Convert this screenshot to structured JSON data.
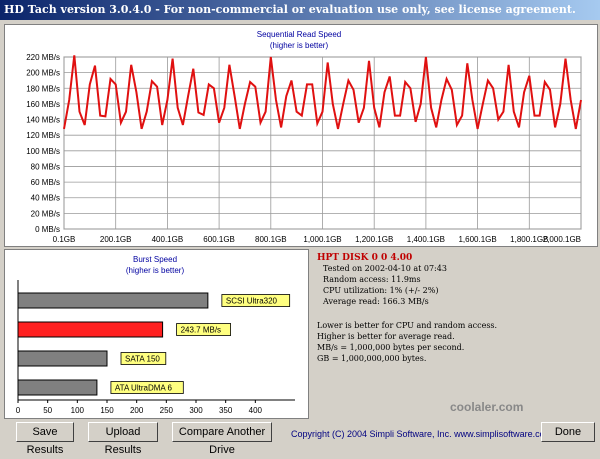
{
  "window": {
    "title": "HD Tach version 3.0.4.0 - For non-commercial or evaluation use only, see license agreement."
  },
  "read_chart": {
    "title": "Sequential Read Speed",
    "subtitle": "(higher is better)",
    "line_color": "#e01010"
  },
  "burst_chart": {
    "title": "Burst Speed",
    "subtitle": "(higher is better)"
  },
  "chart_data": [
    {
      "type": "line",
      "title": "Sequential Read Speed",
      "subtitle": "(higher is better)",
      "xlabel": "",
      "ylabel": "",
      "ylim": [
        0,
        220
      ],
      "xlim": [
        0.1,
        2000
      ],
      "yticks": [
        "0 MB/s",
        "20 MB/s",
        "40 MB/s",
        "60 MB/s",
        "80 MB/s",
        "100 MB/s",
        "120 MB/s",
        "140 MB/s",
        "160 MB/s",
        "180 MB/s",
        "200 MB/s",
        "220 MB/s"
      ],
      "xticks": [
        "0.1GB",
        "200.1GB",
        "400.1GB",
        "600.1GB",
        "800.1GB",
        "1,000.1GB",
        "1,200.1GB",
        "1,400.1GB",
        "1,600.1GB",
        "1,800.1GB",
        "2,000.1GB"
      ],
      "grid": true,
      "series": [
        {
          "x": [
            0,
            20,
            40,
            60,
            80,
            100,
            120,
            140,
            160,
            180,
            200,
            220,
            240,
            260,
            280,
            300,
            320,
            340,
            360,
            380,
            400,
            420,
            440,
            460,
            480,
            500,
            520,
            540,
            560,
            580,
            600,
            620,
            640,
            660,
            680,
            700,
            720,
            740,
            760,
            780,
            800,
            820,
            840,
            860,
            880,
            900,
            920,
            940,
            960,
            980,
            1000,
            1020,
            1040,
            1060,
            1080,
            1100,
            1120,
            1140,
            1160,
            1180,
            1200,
            1220,
            1240,
            1260,
            1280,
            1300,
            1320,
            1340,
            1360,
            1380,
            1400,
            1420,
            1440,
            1460,
            1480,
            1500,
            1520,
            1540,
            1560,
            1580,
            1600,
            1620,
            1640,
            1660,
            1680,
            1700,
            1720,
            1740,
            1760,
            1780,
            1800,
            1820,
            1840,
            1860,
            1880,
            1900,
            1920,
            1940,
            1960,
            1980,
            2000
          ],
          "values": [
            128,
            165,
            222,
            150,
            133,
            185,
            209,
            145,
            144,
            192,
            185,
            136,
            150,
            210,
            175,
            128,
            150,
            189,
            182,
            133,
            165,
            218,
            155,
            133,
            170,
            205,
            149,
            146,
            185,
            180,
            136,
            155,
            210,
            170,
            128,
            160,
            188,
            182,
            136,
            150,
            220,
            165,
            130,
            170,
            190,
            150,
            145,
            185,
            185,
            135,
            150,
            213,
            160,
            128,
            160,
            190,
            178,
            136,
            155,
            215,
            155,
            130,
            175,
            195,
            145,
            145,
            188,
            180,
            137,
            160,
            220,
            155,
            130,
            165,
            192,
            178,
            133,
            145,
            212,
            165,
            128,
            160,
            190,
            180,
            140,
            150,
            210,
            150,
            130,
            175,
            196,
            145,
            145,
            188,
            178,
            130,
            160,
            218,
            165,
            128,
            165
          ]
        }
      ]
    },
    {
      "type": "bar",
      "title": "Burst Speed",
      "subtitle": "(higher is better)",
      "xlabel": "",
      "ylabel": "",
      "xlim": [
        0,
        450
      ],
      "xticks": [
        "0",
        "50",
        "100",
        "150",
        "200",
        "250",
        "300",
        "350",
        "400"
      ],
      "grid": false,
      "categories": [
        "SCSI Ultra320",
        "243.7 MB/s",
        "SATA 150",
        "ATA UltraDMA 6"
      ],
      "values": [
        320,
        243.7,
        150,
        133
      ],
      "colors": [
        "#808080",
        "#ff2020",
        "#808080",
        "#808080"
      ]
    }
  ],
  "info": {
    "drive": "HPT DISK 0 0 4.00",
    "lines_a": [
      "Tested on 2002-04-10 at 07:43",
      "Random access: 11.9ms",
      "CPU utilization: 1% (+/- 2%)",
      "Average read: 166.3 MB/s"
    ],
    "lines_b": [
      "Lower is better for CPU and random access.",
      "Higher is better for average read.",
      "MB/s = 1,000,000 bytes per second.",
      "GB = 1,000,000,000 bytes."
    ]
  },
  "buttons": {
    "save": "Save Results",
    "upload": "Upload Results",
    "compare": "Compare Another Drive",
    "done": "Done"
  },
  "footer": {
    "copyright": "Copyright (C) 2004 Simpli Software, Inc. www.simplisoftware.com"
  },
  "watermark": "coolaler.com"
}
